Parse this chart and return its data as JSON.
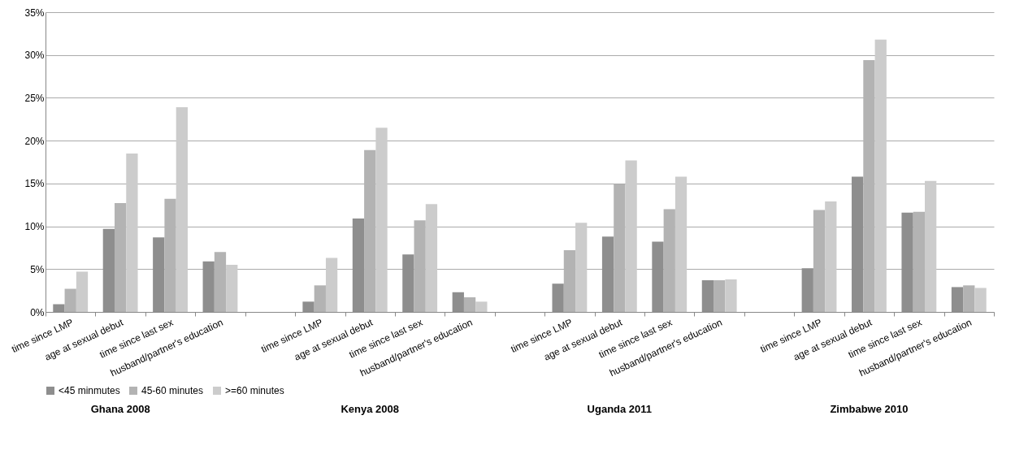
{
  "chart_data": {
    "type": "bar",
    "categories": [
      "time since LMP",
      "age at sexual debut",
      "time since last sex",
      "husband/partner's education",
      null,
      "time since LMP",
      "age at sexual debut",
      "time since last sex",
      "husband/partner's education",
      null,
      "time since LMP",
      "age at sexual debut",
      "time since last sex",
      "husband/partner's education",
      null,
      "time since LMP",
      "age at sexual debut",
      "time since last sex",
      "husband/partner's education"
    ],
    "series": [
      {
        "name": "<45 minmutes",
        "color": "#8e8e8e",
        "values": [
          0.9,
          9.7,
          8.7,
          5.9,
          null,
          1.2,
          10.9,
          6.7,
          2.3,
          null,
          3.3,
          8.8,
          8.2,
          3.7,
          null,
          5.1,
          15.8,
          11.6,
          2.9
        ]
      },
      {
        "name": "45-60 minutes",
        "color": "#b3b3b3",
        "values": [
          2.7,
          12.7,
          13.2,
          7.0,
          null,
          3.1,
          18.9,
          10.7,
          1.7,
          null,
          7.2,
          14.9,
          12.0,
          3.7,
          null,
          11.9,
          29.4,
          11.7,
          3.1
        ]
      },
      {
        "name": ">=60 minutes",
        "color": "#cccccc",
        "values": [
          4.7,
          18.5,
          23.9,
          5.5,
          null,
          6.3,
          21.5,
          12.6,
          1.2,
          null,
          10.4,
          17.7,
          15.8,
          3.8,
          null,
          12.9,
          31.8,
          15.3,
          2.8
        ]
      }
    ],
    "ylim": [
      0,
      35
    ],
    "yticks": [
      {
        "value": 0,
        "label": "0%"
      },
      {
        "value": 5,
        "label": "5%"
      },
      {
        "value": 10,
        "label": "10%"
      },
      {
        "value": 15,
        "label": "15%"
      },
      {
        "value": 20,
        "label": "20%"
      },
      {
        "value": 25,
        "label": "25%"
      },
      {
        "value": 30,
        "label": "30%"
      },
      {
        "value": 35,
        "label": "35%"
      }
    ],
    "annotations": [
      "Ghana 2008",
      "Kenya 2008",
      "Uganda 2011",
      "Zimbabwe 2010"
    ],
    "grid": "y",
    "legend": "bottom"
  }
}
